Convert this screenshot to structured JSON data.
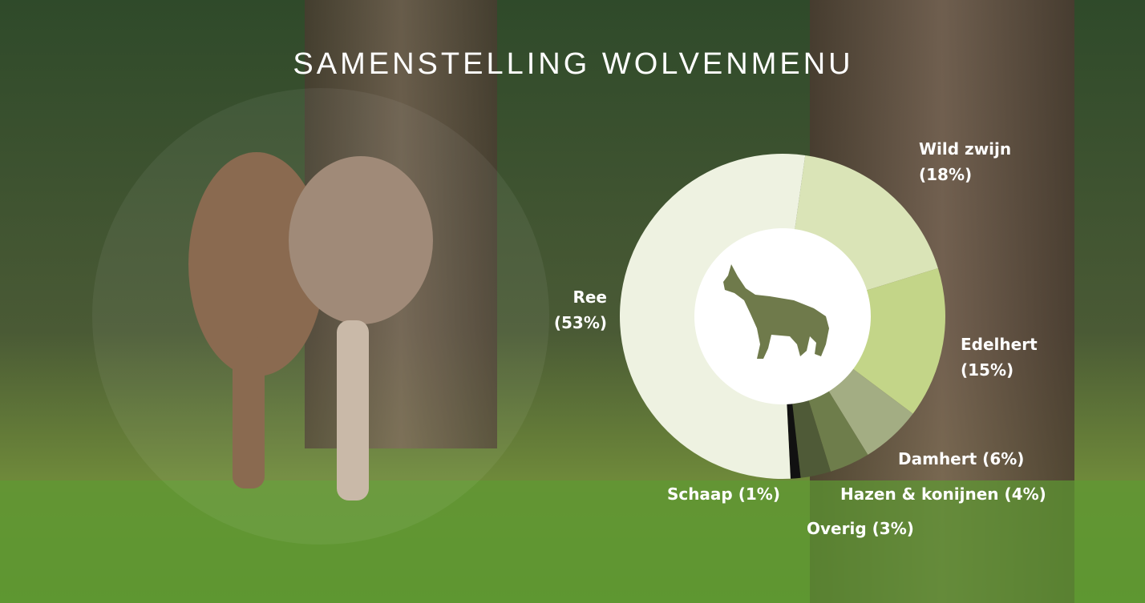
{
  "chart_data": {
    "type": "pie",
    "title": "SAMENSTELLING WOLVENMENU",
    "categories": [
      "Ree",
      "Wild zwijn",
      "Edelhert",
      "Damhert",
      "Hazen & konijnen",
      "Overig",
      "Schaap"
    ],
    "values": [
      53,
      18,
      15,
      6,
      4,
      3,
      1
    ],
    "value_labels": [
      "(53%)",
      "(18%)",
      "(15%)",
      "(6%)",
      "(4%)",
      "(3%)",
      "(1%)"
    ],
    "colors": [
      "#eef2e1",
      "#dae4b7",
      "#c3d588",
      "#a3ad83",
      "#6e7d4b",
      "#4f5a37",
      "#111111"
    ]
  }
}
